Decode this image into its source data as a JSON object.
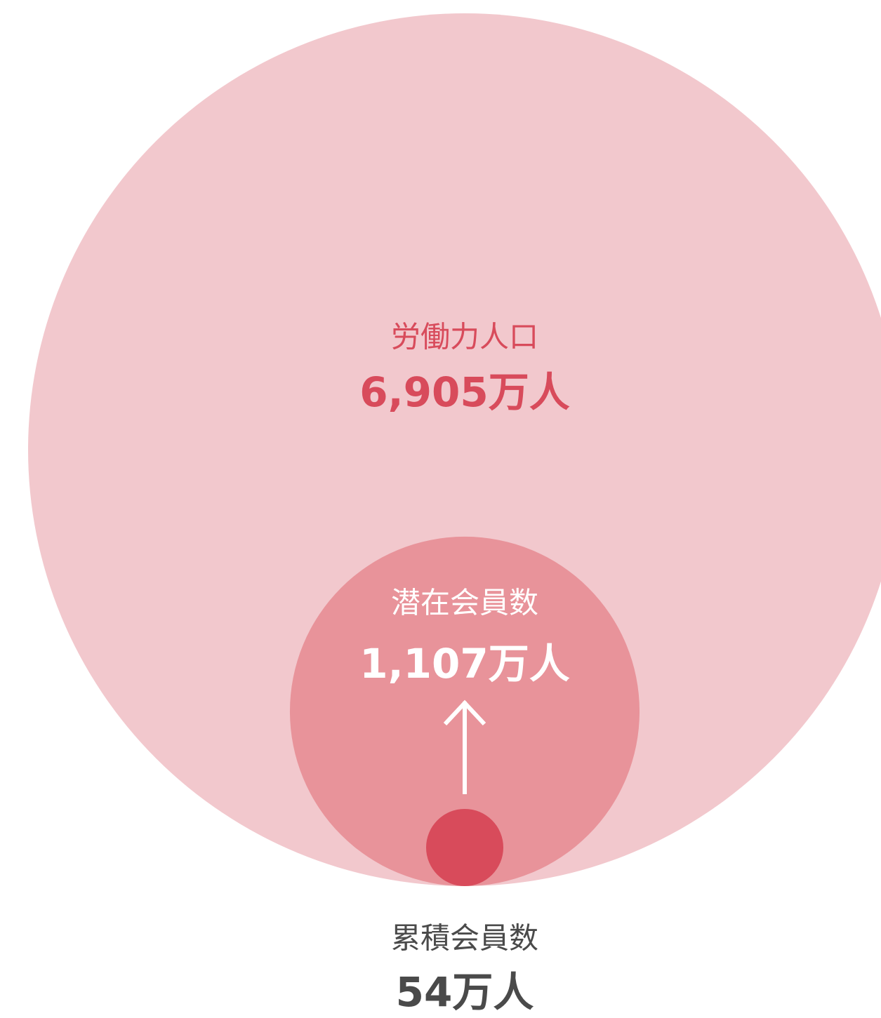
{
  "chart_data": {
    "type": "bubble",
    "categories": [
      "労働力人口",
      "潜在会員数",
      "累積会員数"
    ],
    "values": [
      6905,
      1107,
      54
    ],
    "value_labels": [
      "6,905万人",
      "1,107万人",
      "54万人"
    ],
    "colors": [
      "#f2c8cd",
      "#e8939a",
      "#d84b5b"
    ]
  }
}
